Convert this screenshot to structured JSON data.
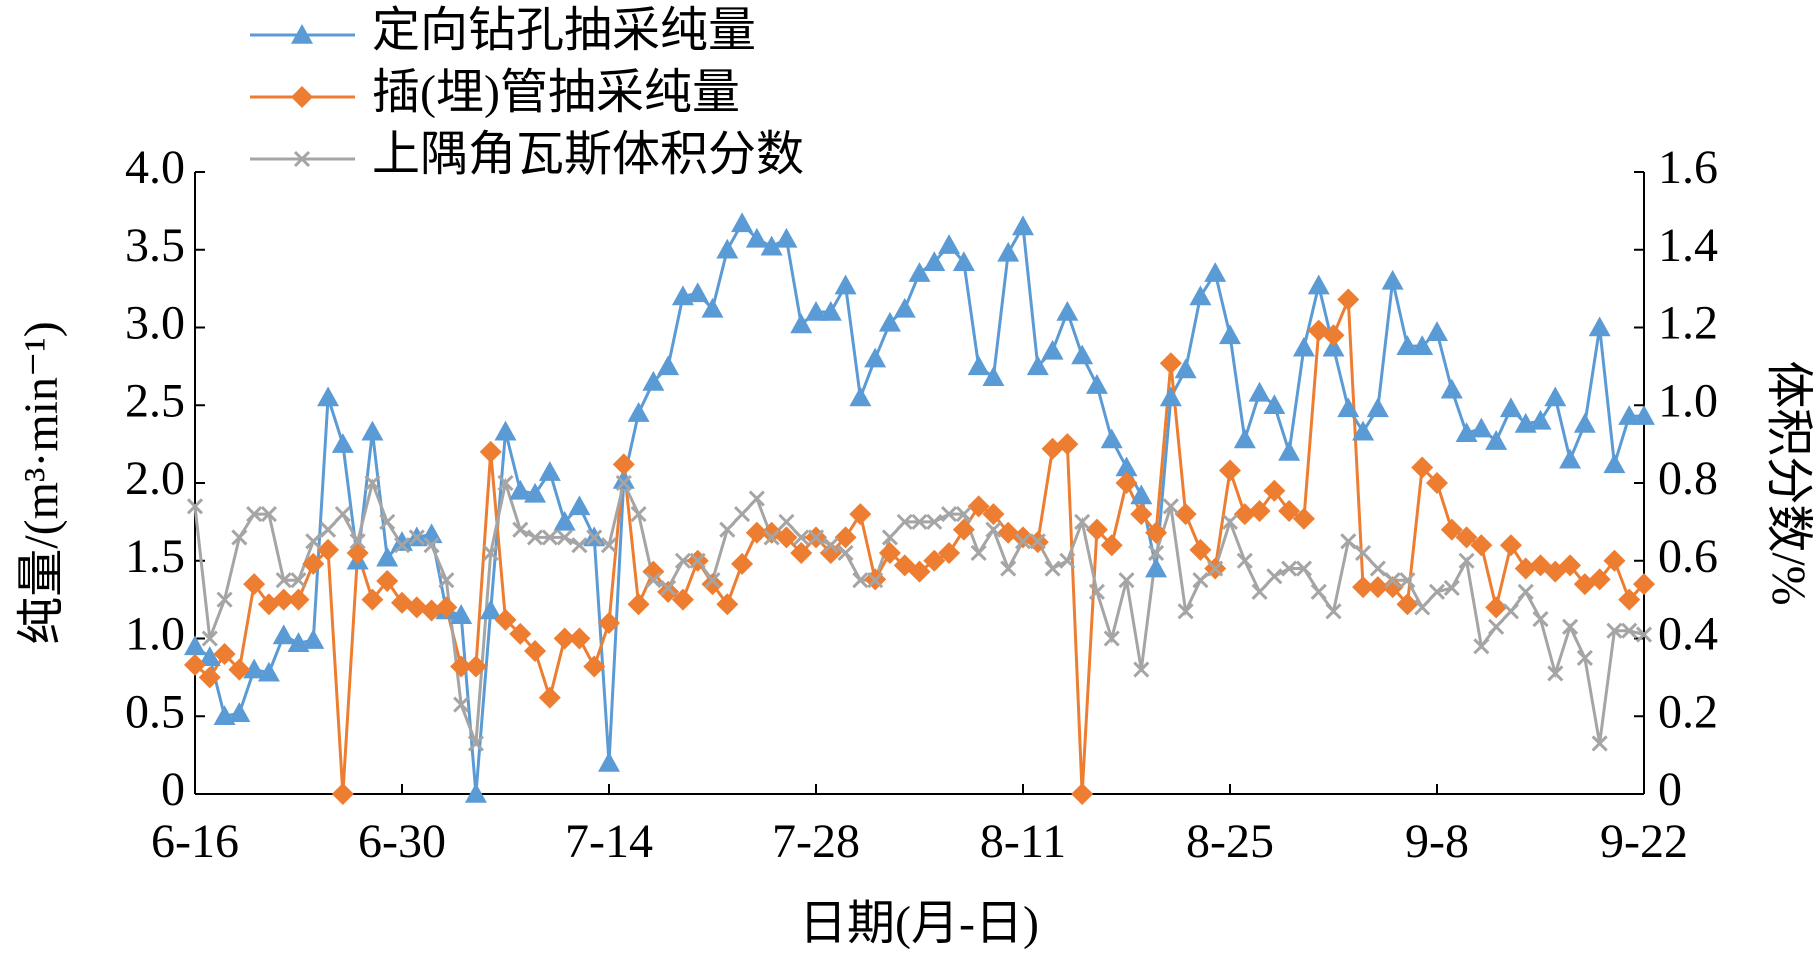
{
  "chart_data": {
    "type": "line",
    "x_label": "日期(月-日)",
    "y_label": "纯量/(m³·min⁻¹)",
    "y2_label": "体积分数/%",
    "legend": "top-left",
    "x": [
      0,
      1,
      2,
      3,
      4,
      5,
      6,
      7,
      8,
      9,
      10,
      11,
      12,
      13,
      14,
      15,
      16,
      17,
      18,
      19,
      20,
      21,
      22,
      23,
      24,
      25,
      26,
      27,
      28,
      29,
      30,
      31,
      32,
      33,
      34,
      35,
      36,
      37,
      38,
      39,
      40,
      41,
      42,
      43,
      44,
      45,
      46,
      47,
      48,
      49,
      50,
      51,
      52,
      53,
      54,
      55,
      56,
      57,
      58,
      59,
      60,
      61,
      62,
      63,
      64,
      65,
      66,
      67,
      68,
      69,
      70,
      71,
      72,
      73,
      74,
      75,
      76,
      77,
      78,
      79,
      80,
      81,
      82,
      83,
      84,
      85,
      86,
      87,
      88,
      89,
      90,
      91,
      92,
      93,
      94,
      95,
      96,
      97,
      98
    ],
    "xlim": [
      0,
      98
    ],
    "xticks": [
      {
        "value": 0,
        "label": "6-16"
      },
      {
        "value": 14,
        "label": "6-30"
      },
      {
        "value": 28,
        "label": "7-14"
      },
      {
        "value": 42,
        "label": "7-28"
      },
      {
        "value": 56,
        "label": "8-11"
      },
      {
        "value": 70,
        "label": "8-25"
      },
      {
        "value": 84,
        "label": "9-8"
      },
      {
        "value": 98,
        "label": "9-22"
      }
    ],
    "ylim": [
      0,
      4
    ],
    "yticks": [
      0,
      0.5,
      {
        "value": 1,
        "label": "1.0"
      },
      1.5,
      {
        "value": 2,
        "label": "2.0"
      },
      2.5,
      {
        "value": 3,
        "label": "3.0"
      },
      3.5,
      {
        "value": 4,
        "label": "4.0"
      }
    ],
    "y2lim": [
      0,
      1.6
    ],
    "y2ticks": [
      0,
      0.2,
      0.4,
      0.6,
      0.8,
      {
        "value": 1,
        "label": "1.0"
      },
      1.2,
      1.4,
      1.6
    ],
    "series": [
      {
        "name": "定向钻孔抽采纯量",
        "color": "#5b9bd5",
        "marker": "triangle",
        "axis": "y",
        "values": [
          0.95,
          0.88,
          0.5,
          0.52,
          0.8,
          0.78,
          1.02,
          0.97,
          0.99,
          2.55,
          2.25,
          1.5,
          2.33,
          1.52,
          1.62,
          1.65,
          1.67,
          1.18,
          1.15,
          0,
          1.18,
          2.33,
          1.95,
          1.93,
          2.07,
          1.75,
          1.85,
          1.65,
          0.2,
          2.02,
          2.45,
          2.65,
          2.75,
          3.2,
          3.22,
          3.12,
          3.5,
          3.67,
          3.57,
          3.52,
          3.57,
          3.02,
          3.1,
          3.1,
          3.27,
          2.55,
          2.8,
          3.03,
          3.12,
          3.35,
          3.42,
          3.53,
          3.42,
          2.75,
          2.68,
          3.48,
          3.65,
          2.75,
          2.85,
          3.1,
          2.82,
          2.63,
          2.28,
          2.1,
          1.92,
          1.45,
          2.55,
          2.73,
          3.2,
          3.35,
          2.95,
          2.28,
          2.58,
          2.5,
          2.2,
          2.87,
          3.27,
          2.87,
          2.48,
          2.33,
          2.48,
          3.3,
          2.88,
          2.88,
          2.97,
          2.6,
          2.32,
          2.35,
          2.27,
          2.48,
          2.38,
          2.4,
          2.55,
          2.15,
          2.38,
          3.0,
          2.12,
          2.43,
          2.43
        ]
      },
      {
        "name": "插(埋)管抽采纯量",
        "color": "#ed7d31",
        "marker": "diamond",
        "axis": "y",
        "values": [
          0.83,
          0.75,
          0.9,
          0.8,
          1.35,
          1.22,
          1.25,
          1.25,
          1.48,
          1.57,
          0,
          1.55,
          1.25,
          1.37,
          1.23,
          1.2,
          1.18,
          1.2,
          0.82,
          0.82,
          2.2,
          1.12,
          1.03,
          0.92,
          0.62,
          1.0,
          1.0,
          0.82,
          1.1,
          2.12,
          1.22,
          1.43,
          1.3,
          1.25,
          1.5,
          1.35,
          1.22,
          1.48,
          1.68,
          1.68,
          1.65,
          1.55,
          1.65,
          1.55,
          1.65,
          1.8,
          1.38,
          1.55,
          1.47,
          1.43,
          1.5,
          1.55,
          1.7,
          1.85,
          1.8,
          1.68,
          1.65,
          1.62,
          2.22,
          2.25,
          0,
          1.7,
          1.6,
          2.0,
          1.8,
          1.68,
          2.77,
          1.8,
          1.57,
          1.45,
          2.08,
          1.8,
          1.82,
          1.95,
          1.82,
          1.77,
          2.98,
          2.95,
          3.18,
          1.33,
          1.33,
          1.33,
          1.22,
          2.1,
          2.0,
          1.7,
          1.65,
          1.6,
          1.2,
          1.6,
          1.45,
          1.47,
          1.43,
          1.47,
          1.35,
          1.38,
          1.5,
          1.25,
          1.35
        ]
      },
      {
        "name": "上隅角瓦斯体积分数",
        "color": "#a5a5a5",
        "marker": "x",
        "axis": "y2",
        "values": [
          0.74,
          0.4,
          0.5,
          0.66,
          0.72,
          0.72,
          0.55,
          0.55,
          0.65,
          0.68,
          0.72,
          0.65,
          0.8,
          0.7,
          0.64,
          0.66,
          0.64,
          0.55,
          0.23,
          0.13,
          0.62,
          0.8,
          0.68,
          0.66,
          0.66,
          0.66,
          0.64,
          0.66,
          0.64,
          0.8,
          0.72,
          0.55,
          0.53,
          0.6,
          0.6,
          0.55,
          0.68,
          0.72,
          0.76,
          0.66,
          0.7,
          0.66,
          0.66,
          0.64,
          0.62,
          0.55,
          0.55,
          0.66,
          0.7,
          0.7,
          0.7,
          0.72,
          0.72,
          0.62,
          0.68,
          0.58,
          0.65,
          0.65,
          0.58,
          0.6,
          0.7,
          0.52,
          0.4,
          0.55,
          0.32,
          0.62,
          0.74,
          0.47,
          0.55,
          0.58,
          0.7,
          0.6,
          0.52,
          0.56,
          0.58,
          0.58,
          0.52,
          0.47,
          0.65,
          0.62,
          0.58,
          0.55,
          0.55,
          0.48,
          0.52,
          0.53,
          0.6,
          0.38,
          0.43,
          0.47,
          0.52,
          0.45,
          0.31,
          0.43,
          0.35,
          0.13,
          0.42,
          0.42,
          0.41
        ]
      }
    ]
  }
}
